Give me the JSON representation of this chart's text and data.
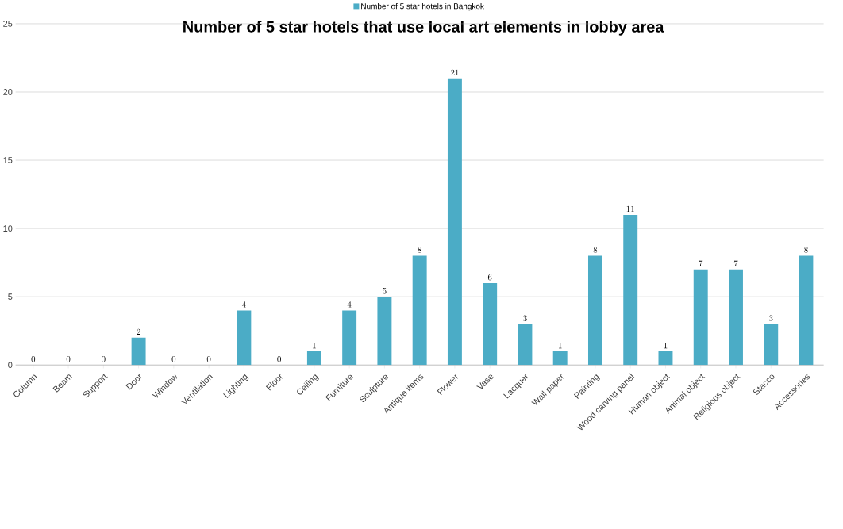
{
  "chart_data": {
    "type": "bar",
    "title": "Number of 5 star hotels that use local art elements in lobby area",
    "categories": [
      "Column",
      "Beam",
      "Support",
      "Door",
      "Window",
      "Ventilation",
      "Lighting",
      "Floor",
      "Ceiling",
      "Furniture",
      "Sculpture",
      "Antique items",
      "Flower",
      "Vase",
      "Lacquer",
      "Wall paper",
      "Painting",
      "Wood carving panel",
      "Human object",
      "Animal object",
      "Religious object",
      "Stacco",
      "Accessories"
    ],
    "series": [
      {
        "name": "Number of 5 star hotels in Bangkok",
        "color": "#4bacc6",
        "values": [
          0,
          0,
          0,
          2,
          0,
          0,
          4,
          0,
          1,
          4,
          5,
          8,
          21,
          6,
          3,
          1,
          8,
          11,
          1,
          7,
          7,
          3,
          8
        ]
      }
    ],
    "ylim": [
      0,
      25
    ],
    "yticks": [
      0,
      5,
      10,
      15,
      20,
      25
    ],
    "grid": "y",
    "legend": "top",
    "data_labels": true
  }
}
